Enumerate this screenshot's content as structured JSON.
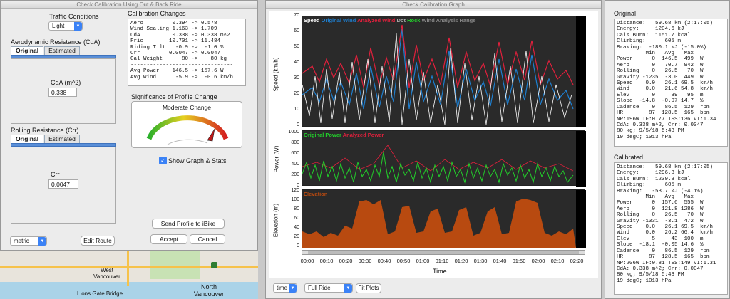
{
  "left_window": {
    "title": "Check Calibration Using Out & Back Ride",
    "traffic_label": "Traffic Conditions",
    "traffic_value": "Light",
    "aero_label": "Aerodynamic Resistance (CdA)",
    "tab_original": "Original",
    "tab_estimated": "Estimated",
    "cda_label": "CdA (m^2)",
    "cda_value": "0.338",
    "rolling_label": "Rolling Resistance (Crr)",
    "crr_label": "Crr",
    "crr_value": "0.0047",
    "changes_title": "Calibration Changes",
    "changes_text": "Aero         0.394 -> 0.578\nWind Scaling 1.163 -> 1.709\nCdA          0.338 -> 0.338 m^2\nFric        10.701 -> 11.484\nRiding Tilt   -0.9 ->  -1.0 %\nCrr         0.0047 -> 0.0047\nCal Weight      80 ->    80 kg\n--------------------------------\nAvg Power    146.5 -> 157.6 W\nAvg Wind      -5.9 ->  -0.6 km/h",
    "significance_title": "Significance of Profile Change",
    "gauge_label": "Moderate Change",
    "show_graph_label": "Show Graph & Stats",
    "send_profile": "Send Profile to iBike",
    "accept": "Accept",
    "cancel": "Cancel",
    "units_value": "metric",
    "edit_route": "Edit Route",
    "map": {
      "place1": "West Vancouver",
      "place2": "Lions Gate Bridge",
      "place3": "North Vancouver"
    }
  },
  "graph_window": {
    "title": "Check Calibration Graph",
    "speed_legend": {
      "speed": "Speed",
      "orig_wind": "Original Wind",
      "anal_wind": "Analyzed Wind",
      "rock": "Rock",
      "wind_analysis": "Wind Analysis Range",
      "dot": "Dot"
    },
    "speed_ylabel": "Speed (km/h)",
    "speed_ticks": [
      "70",
      "60",
      "50",
      "40",
      "30",
      "20",
      "10",
      "0"
    ],
    "power_legend": {
      "orig": "Original Power",
      "anal": "Analyzed Power"
    },
    "power_ylabel": "Power (W)",
    "power_ticks": [
      "1000",
      "800",
      "600",
      "400",
      "200",
      "0"
    ],
    "elev_legend": "Elevation",
    "elev_ylabel": "Elevation (m)",
    "elev_ticks": [
      "120",
      "100",
      "80",
      "60",
      "40",
      "20",
      "0"
    ],
    "x_ticks": [
      "00:00",
      "00:10",
      "00:20",
      "00:30",
      "00:40",
      "00:50",
      "01:00",
      "01:10",
      "01:20",
      "01:30",
      "01:40",
      "01:50",
      "02:00",
      "02:10",
      "02:20"
    ],
    "xlabel": "Time",
    "x_select": "time",
    "range_select": "Full Ride",
    "fit_plots": "Fit Plots",
    "colors": {
      "speed": "#ffffff",
      "orig_wind": "#1e7fd0",
      "anal_wind": "#e0203c",
      "orig_power": "#22d02a",
      "anal_power": "#e0203c",
      "elevation": "#b84a10"
    }
  },
  "stats": {
    "original_title": "Original",
    "original_text": "Distance:   59.68 km (2:17:05)\nEnergy:     1204.6 kJ\nCals Burn:  1151.7 kcal\nClimbing:      605 m\nBraking:  -180.1 kJ (-15.0%)\n         Min   Avg   Max\nPower      0  146.5  499  W\nAero       0   70.7  942  W\nRolling    0   26.5   70  W\nGravity -1235  -3.0  449  W\nSpeed    0.0   26.1 69.5  km/h\nWind     0.0   21.6 54.8  km/h\nElev       0     39   95  m\nSlope  -14.8  -0.07 14.7  %\nCadence    0   86.5  129  rpm\nHR        87  128.5  165  bpm\nNP:196W IF:0.77 TSS:136 VI:1.34\nCdA: 0.338 m^2, Crr: 0.0047\n80 kg; 9/5/18 5:43 PM\n19 degC; 1013 hPa",
    "calibrated_title": "Calibrated",
    "calibrated_text": "Distance:   59.68 km (2:17:05)\nEnergy:     1296.3 kJ\nCals Burn:  1239.3 kcal\nClimbing:      605 m\nBraking:   -53.7 kJ (-4.1%)\n         Min   Avg   Max\nPower      0  157.6  555  W\nAero       0  121.8 1286  W\nRolling    0   26.5   70  W\nGravity -1331  -3.1  472  W\nSpeed    0.0   26.1 69.5  km/h\nWind     0.0   26.2 66.4  km/h\nElev       5     43  100  m\nSlope  -18.1  -0.05 14.6  %\nCadence    0   86.5  129  rpm\nHR        87  128.5  165  bpm\nNP:206W IF:0.81 TSS:149 VI:1.31\nCdA: 0.338 m^2; Crr: 0.0047\n80 kg; 9/5/18 5:43 PM\n19 degC; 1013 hPa"
  }
}
